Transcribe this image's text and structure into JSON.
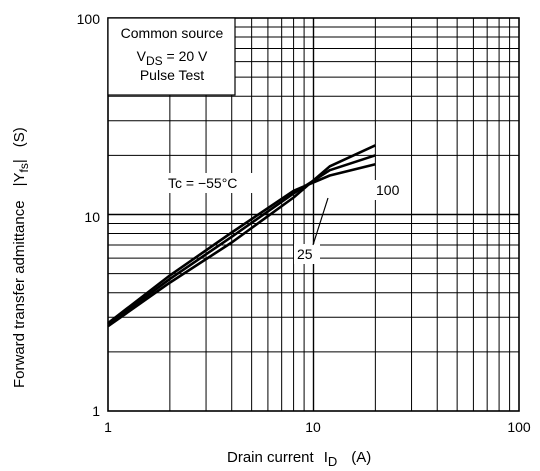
{
  "chart_data": {
    "type": "line",
    "x_scale": "log",
    "y_scale": "log",
    "xlim": [
      1,
      100
    ],
    "ylim": [
      1,
      100
    ],
    "grid": true,
    "xticks": [
      "1",
      "10",
      "100"
    ],
    "yticks": [
      "1",
      "10",
      "100"
    ],
    "xlabel": {
      "main": "Drain current",
      "symbol": "I",
      "subscript": "D",
      "unit": "(A)"
    },
    "ylabel": {
      "main": "Forward transfer admittance",
      "symbol": "|Y",
      "subscript": "fs",
      "bar": "|",
      "unit": "(S)"
    },
    "legend": {
      "line1": "Common source",
      "line2_symbol": "V",
      "line2_subscript": "DS",
      "line2_rest": " = 20 V",
      "line3": "Pulse Test"
    },
    "series": [
      {
        "name": "Tc = −55°C",
        "x": [
          1,
          2,
          4,
          8,
          12,
          20
        ],
        "y": [
          2.8,
          4.9,
          8.1,
          13.2,
          15.8,
          18.0
        ]
      },
      {
        "name": "25",
        "x": [
          1,
          2,
          4,
          8,
          12,
          20
        ],
        "y": [
          2.75,
          4.7,
          7.7,
          12.8,
          16.8,
          20.0
        ]
      },
      {
        "name": "100",
        "x": [
          1,
          2,
          4,
          8,
          12,
          20
        ],
        "y": [
          2.7,
          4.5,
          7.2,
          12.2,
          17.6,
          22.5
        ]
      }
    ],
    "labels": {
      "tc": "Tc = −55°C",
      "t25": "25",
      "t100": "100"
    }
  }
}
